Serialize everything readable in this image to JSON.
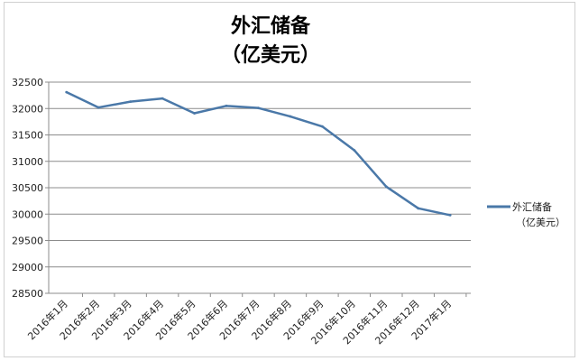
{
  "chart_data": {
    "type": "line",
    "title_line1": "外汇储备",
    "title_line2": "（亿美元）",
    "categories": [
      "2016年1月",
      "2016年2月",
      "2016年3月",
      "2016年4月",
      "2016年5月",
      "2016年6月",
      "2016年7月",
      "2016年8月",
      "2016年9月",
      "2016年10月",
      "2016年11月",
      "2016年12月",
      "2017年1月"
    ],
    "series": [
      {
        "name_line1": "外汇储备",
        "name_line2": "（亿美元）",
        "color": "#4a78a8",
        "values": [
          32310,
          32020,
          32130,
          32190,
          31910,
          32050,
          32010,
          31850,
          31660,
          31210,
          30520,
          30110,
          29980
        ]
      }
    ],
    "y_ticks": [
      "32500",
      "32000",
      "31500",
      "31000",
      "30500",
      "30000",
      "29500",
      "29000",
      "28500"
    ],
    "ylim": [
      28500,
      32500
    ],
    "grid": true,
    "legend": "right"
  }
}
